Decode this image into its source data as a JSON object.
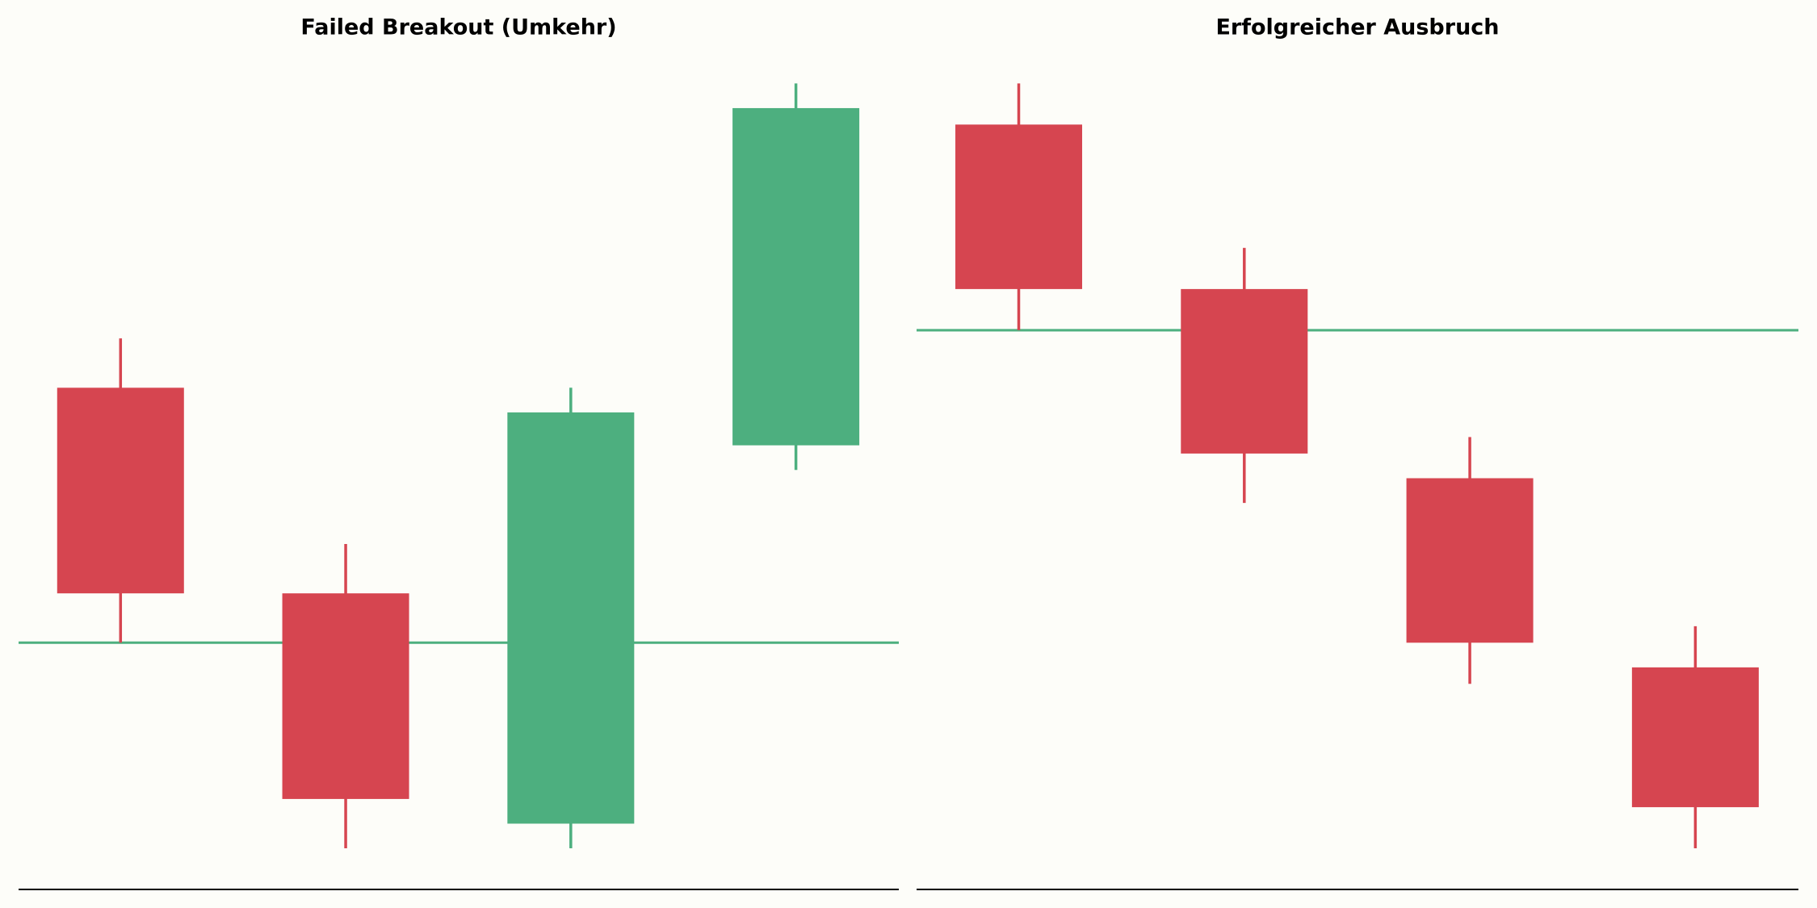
{
  "chart_data": [
    {
      "type": "candlestick",
      "title": "Failed Breakout (Umkehr)",
      "categories": [
        null,
        null,
        null,
        null
      ],
      "open": [
        61,
        36,
        8,
        54
      ],
      "high": [
        67,
        42,
        61,
        98
      ],
      "low": [
        30,
        5,
        5,
        51
      ],
      "close": [
        36,
        11,
        58,
        95
      ],
      "up_color": "#4daf7f",
      "down_color": "#d64550",
      "level": 30,
      "level_color": "#4daf7f",
      "ylim": [
        0,
        100
      ]
    },
    {
      "type": "candlestick",
      "title": "Erfolgreicher Ausbruch",
      "categories": [
        null,
        null,
        null,
        null
      ],
      "open": [
        93,
        73,
        50,
        27
      ],
      "high": [
        98,
        78,
        55,
        32
      ],
      "low": [
        68,
        47,
        25,
        5
      ],
      "close": [
        73,
        53,
        30,
        10
      ],
      "up_color": "#4daf7f",
      "down_color": "#d64550",
      "level": 68,
      "level_color": "#4daf7f",
      "ylim": [
        0,
        100
      ]
    }
  ]
}
